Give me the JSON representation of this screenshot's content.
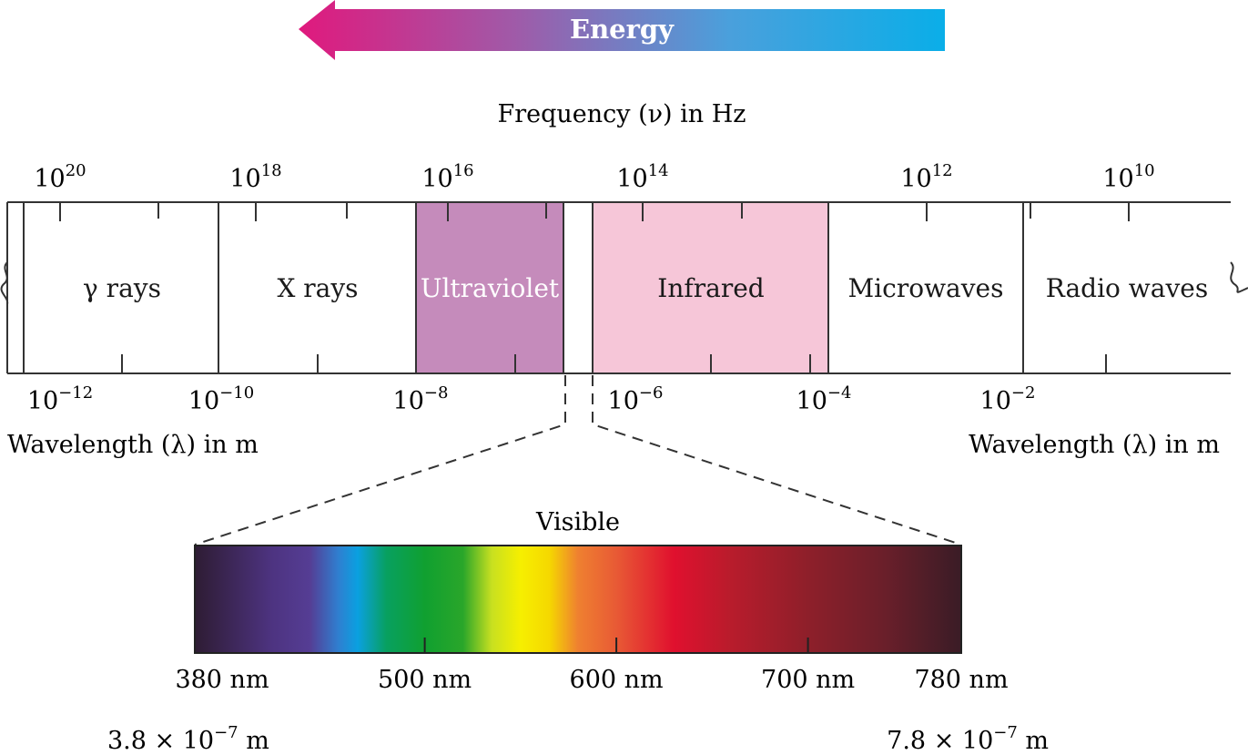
{
  "energy_label": "Energy",
  "energy_gradient": [
    "#e0197d",
    "#a05aa8",
    "#4aa0dc",
    "#0aaee8"
  ],
  "frequency_axis": {
    "title": "Frequency (ν) in Hz",
    "tick_labels": [
      {
        "base": "10",
        "exp": "20"
      },
      {
        "base": "10",
        "exp": "18"
      },
      {
        "base": "10",
        "exp": "16"
      },
      {
        "base": "10",
        "exp": "14"
      },
      {
        "base": "10",
        "exp": "12"
      },
      {
        "base": "10",
        "exp": "10"
      }
    ]
  },
  "wavelength_axis": {
    "title_left": "Wavelength (λ) in m",
    "title_right": "Wavelength (λ) in m",
    "tick_labels": [
      {
        "base": "10",
        "exp": "−12"
      },
      {
        "base": "10",
        "exp": "−10"
      },
      {
        "base": "10",
        "exp": "−8"
      },
      {
        "base": "10",
        "exp": "−6"
      },
      {
        "base": "10",
        "exp": "−4"
      },
      {
        "base": "10",
        "exp": "−2"
      }
    ]
  },
  "regions": [
    {
      "label": "γ rays",
      "fill": "#ffffff",
      "text_color": "#1a1a1a"
    },
    {
      "label": "X rays",
      "fill": "#ffffff",
      "text_color": "#1a1a1a"
    },
    {
      "label": "Ultraviolet",
      "fill": "#c58bbb",
      "text_color": "#ffffff"
    },
    {
      "label": "Infrared",
      "fill": "#f6c6d8",
      "text_color": "#1a1a1a"
    },
    {
      "label": "Microwaves",
      "fill": "#ffffff",
      "text_color": "#1a1a1a"
    },
    {
      "label": "Radio waves",
      "fill": "#ffffff",
      "text_color": "#1a1a1a"
    }
  ],
  "visible": {
    "title": "Visible",
    "ticks": [
      {
        "value_nm": 380,
        "label": "380 nm"
      },
      {
        "value_nm": 500,
        "label": "500 nm"
      },
      {
        "value_nm": 600,
        "label": "600 nm"
      },
      {
        "value_nm": 700,
        "label": "700 nm"
      },
      {
        "value_nm": 780,
        "label": "780 nm"
      }
    ],
    "min_nm": 380,
    "max_nm": 780,
    "left_meter_label": {
      "base": "3.8 × 10",
      "exp": "−7",
      "unit": " m"
    },
    "right_meter_label": {
      "base": "7.8 × 10",
      "exp": "−7",
      "unit": " m"
    },
    "spectrum_colors": [
      {
        "nm": 380,
        "color": "#2e1c33"
      },
      {
        "nm": 420,
        "color": "#4d3380"
      },
      {
        "nm": 440,
        "color": "#553d94"
      },
      {
        "nm": 455,
        "color": "#2f7fd0"
      },
      {
        "nm": 465,
        "color": "#0aa0e0"
      },
      {
        "nm": 480,
        "color": "#08a060"
      },
      {
        "nm": 500,
        "color": "#10a030"
      },
      {
        "nm": 520,
        "color": "#2aa62a"
      },
      {
        "nm": 535,
        "color": "#c8e020"
      },
      {
        "nm": 550,
        "color": "#f6ef00"
      },
      {
        "nm": 565,
        "color": "#f5d800"
      },
      {
        "nm": 580,
        "color": "#ef8030"
      },
      {
        "nm": 600,
        "color": "#e85a35"
      },
      {
        "nm": 630,
        "color": "#e0102e"
      },
      {
        "nm": 660,
        "color": "#b81c2c"
      },
      {
        "nm": 700,
        "color": "#8e1f2a"
      },
      {
        "nm": 740,
        "color": "#6a1f2a"
      },
      {
        "nm": 780,
        "color": "#3a1c26"
      }
    ]
  }
}
